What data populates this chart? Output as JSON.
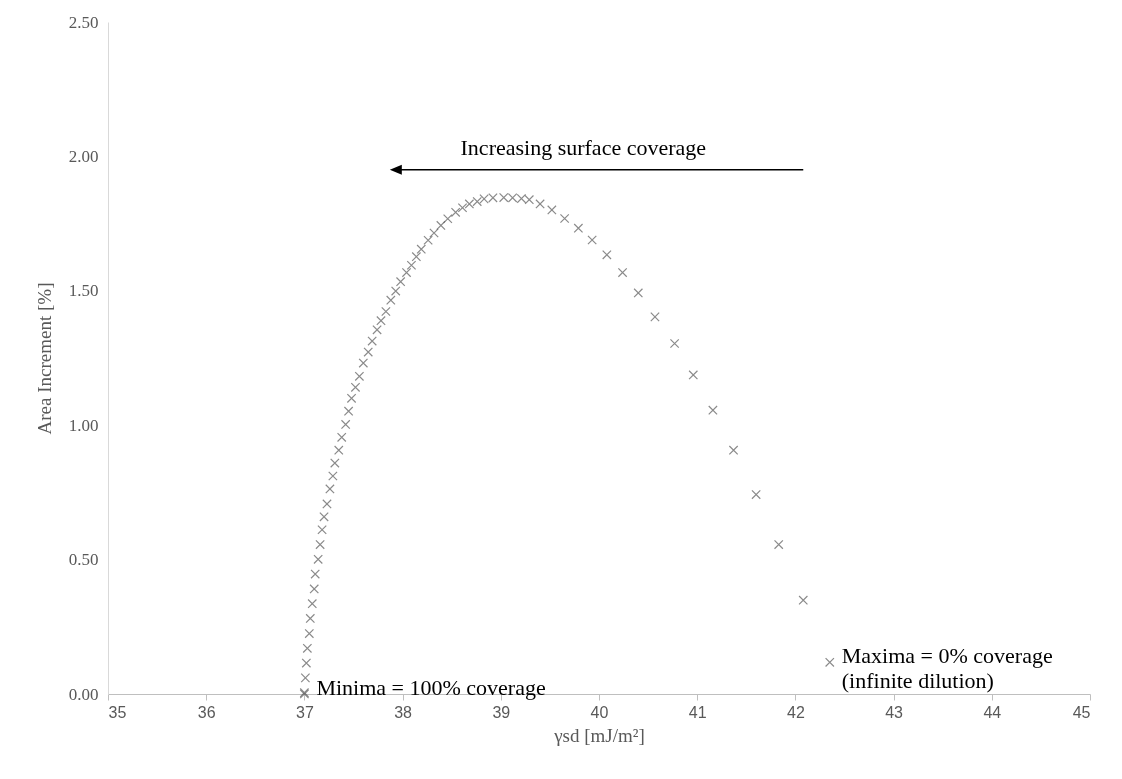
{
  "chart_data": {
    "type": "scatter",
    "xlabel": "γsd  [mJ/m²]",
    "ylabel": "Area Increment  [%]",
    "xlim": [
      35,
      45
    ],
    "xticks": [
      35,
      36,
      37,
      38,
      39,
      40,
      41,
      42,
      43,
      44,
      45
    ],
    "ylim": [
      0,
      2.5
    ],
    "yticks": [
      {
        "value": 0,
        "label": "0.00"
      },
      {
        "value": 0.5,
        "label": "0.50"
      },
      {
        "value": 1,
        "label": "1.00"
      },
      {
        "value": 1.5,
        "label": "1.50"
      },
      {
        "value": 2,
        "label": "2.00"
      },
      {
        "value": 2.5,
        "label": "2.50"
      }
    ],
    "marker": "cross",
    "grid": false,
    "legend": false,
    "x": [
      37.0,
      37.0,
      37.01,
      37.02,
      37.03,
      37.05,
      37.06,
      37.08,
      37.1,
      37.11,
      37.14,
      37.16,
      37.18,
      37.2,
      37.23,
      37.26,
      37.29,
      37.31,
      37.35,
      37.38,
      37.42,
      37.45,
      37.48,
      37.52,
      37.56,
      37.6,
      37.65,
      37.69,
      37.74,
      37.78,
      37.83,
      37.88,
      37.93,
      37.98,
      38.04,
      38.09,
      38.14,
      38.19,
      38.26,
      38.32,
      38.39,
      38.46,
      38.54,
      38.61,
      38.68,
      38.76,
      38.83,
      38.92,
      39.03,
      39.12,
      39.21,
      39.29,
      39.4,
      39.52,
      39.65,
      39.79,
      39.93,
      40.08,
      40.24,
      40.4,
      40.57,
      40.77,
      40.96,
      41.16,
      41.37,
      41.6,
      41.83,
      42.08,
      42.35
    ],
    "series": [
      {
        "color": "#595959",
        "values": [
          0.0,
          0.005,
          0.06,
          0.115,
          0.17,
          0.225,
          0.281,
          0.336,
          0.391,
          0.446,
          0.501,
          0.556,
          0.611,
          0.659,
          0.707,
          0.763,
          0.811,
          0.859,
          0.907,
          0.955,
          1.003,
          1.052,
          1.1,
          1.141,
          1.182,
          1.231,
          1.272,
          1.313,
          1.355,
          1.389,
          1.423,
          1.465,
          1.499,
          1.534,
          1.568,
          1.595,
          1.627,
          1.655,
          1.688,
          1.715,
          1.743,
          1.768,
          1.792,
          1.809,
          1.823,
          1.832,
          1.842,
          1.846,
          1.847,
          1.846,
          1.843,
          1.839,
          1.823,
          1.801,
          1.769,
          1.733,
          1.689,
          1.634,
          1.568,
          1.492,
          1.403,
          1.304,
          1.187,
          1.056,
          0.907,
          0.742,
          0.556,
          0.349,
          0.118
        ]
      }
    ],
    "annotations": [
      "Increasing surface coverage",
      {
        "text": "Minima = 100% coverage",
        "x": 37.0,
        "y": 0.0
      },
      {
        "text": "Maxima = 0% coverage\n(infinite dilution)",
        "x": 42.35,
        "y": 0.118
      }
    ]
  }
}
